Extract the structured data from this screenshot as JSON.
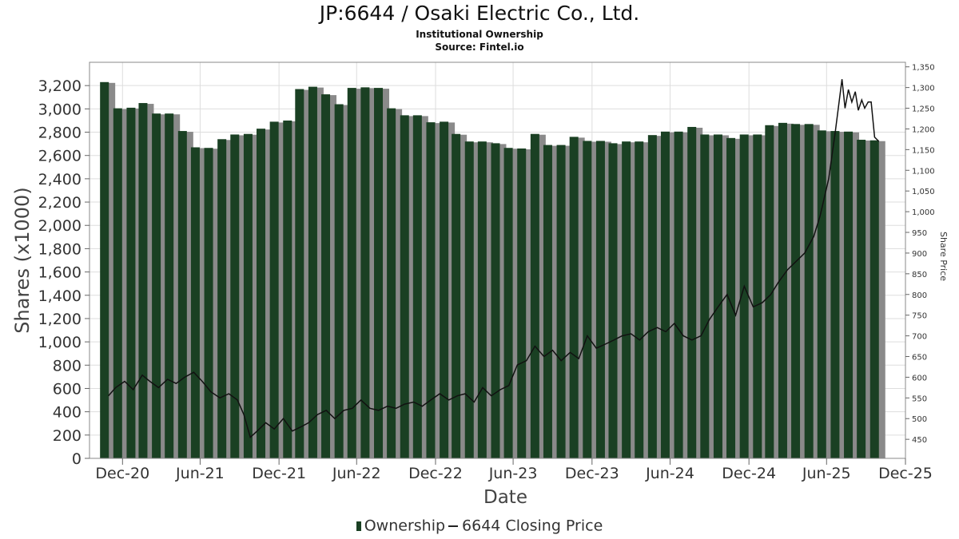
{
  "title": "JP:6644 / Osaki Electric Co., Ltd.",
  "subtitle1": "Institutional Ownership",
  "subtitle2": "Source: Fintel.io",
  "legend": {
    "ownership": "Ownership",
    "price": "6644 Closing Price"
  },
  "colors": {
    "bar": "#1a4023",
    "bar_shadow": "#8a8a8a",
    "price_line": "#111111",
    "grid": "#dddddd"
  },
  "chart_data": {
    "type": "bar",
    "xlabel": "Date",
    "ylabel": "Shares (x1000)",
    "y2label": "Share Price",
    "ylim": [
      0,
      3400
    ],
    "y2lim": [
      404,
      1361
    ],
    "yticks": [
      0,
      200,
      400,
      600,
      800,
      1000,
      1200,
      1400,
      1600,
      1800,
      2000,
      2200,
      2400,
      2600,
      2800,
      3000,
      3200
    ],
    "y2ticks": [
      450,
      500,
      550,
      600,
      650,
      700,
      750,
      800,
      850,
      900,
      950,
      1000,
      1050,
      1100,
      1150,
      1200,
      1250,
      1300,
      1350
    ],
    "xlim": [
      "2020-10-15",
      "2025-12-31"
    ],
    "xticks": [
      {
        "label": "Dec-20",
        "date": "2020-12-31"
      },
      {
        "label": "Jun-21",
        "date": "2021-06-30"
      },
      {
        "label": "Dec-21",
        "date": "2021-12-31"
      },
      {
        "label": "Jun-22",
        "date": "2022-06-30"
      },
      {
        "label": "Dec-22",
        "date": "2022-12-31"
      },
      {
        "label": "Jun-23",
        "date": "2023-06-30"
      },
      {
        "label": "Dec-23",
        "date": "2023-12-31"
      },
      {
        "label": "Jun-24",
        "date": "2024-06-30"
      },
      {
        "label": "Dec-24",
        "date": "2024-12-31"
      },
      {
        "label": "Jun-25",
        "date": "2025-06-30"
      },
      {
        "label": "Dec-25",
        "date": "2025-12-31"
      }
    ],
    "series": [
      {
        "name": "Ownership",
        "type": "bar",
        "dates": [
          "2020-11-30",
          "2020-12-31",
          "2021-01-31",
          "2021-02-28",
          "2021-03-31",
          "2021-04-30",
          "2021-05-31",
          "2021-06-30",
          "2021-07-31",
          "2021-08-31",
          "2021-09-30",
          "2021-10-31",
          "2021-11-30",
          "2021-12-31",
          "2022-01-31",
          "2022-02-28",
          "2022-03-31",
          "2022-04-30",
          "2022-05-31",
          "2022-06-30",
          "2022-07-31",
          "2022-08-31",
          "2022-09-30",
          "2022-10-31",
          "2022-11-30",
          "2022-12-31",
          "2023-01-31",
          "2023-02-28",
          "2023-03-31",
          "2023-04-30",
          "2023-05-31",
          "2023-06-30",
          "2023-07-31",
          "2023-08-31",
          "2023-09-30",
          "2023-10-31",
          "2023-11-30",
          "2023-12-31",
          "2024-01-31",
          "2024-02-29",
          "2024-03-31",
          "2024-04-30",
          "2024-05-31",
          "2024-06-30",
          "2024-07-31",
          "2024-08-31",
          "2024-09-30",
          "2024-10-31",
          "2024-11-30",
          "2024-12-31",
          "2025-01-31",
          "2025-02-28",
          "2025-03-31",
          "2025-04-30",
          "2025-05-31",
          "2025-06-30",
          "2025-07-31",
          "2025-08-31",
          "2025-09-30",
          "2025-10-31"
        ],
        "values": [
          3230,
          3005,
          3010,
          3050,
          2960,
          2960,
          2810,
          2670,
          2665,
          2740,
          2780,
          2785,
          2830,
          2890,
          2900,
          3170,
          3190,
          3125,
          3040,
          3180,
          3185,
          3180,
          3005,
          2945,
          2945,
          2885,
          2890,
          2785,
          2720,
          2720,
          2705,
          2665,
          2660,
          2785,
          2690,
          2690,
          2760,
          2725,
          2725,
          2705,
          2720,
          2720,
          2775,
          2805,
          2805,
          2845,
          2780,
          2780,
          2750,
          2780,
          2780,
          2860,
          2880,
          2870,
          2870,
          2815,
          2810,
          2805,
          2735,
          2730
        ]
      },
      {
        "name": "6644 Closing Price",
        "type": "line",
        "points": [
          [
            "2020-11-28",
            555
          ],
          [
            "2020-12-15",
            575
          ],
          [
            "2021-01-05",
            590
          ],
          [
            "2021-01-25",
            570
          ],
          [
            "2021-02-15",
            605
          ],
          [
            "2021-03-05",
            590
          ],
          [
            "2021-03-25",
            575
          ],
          [
            "2021-04-15",
            595
          ],
          [
            "2021-05-05",
            585
          ],
          [
            "2021-05-25",
            600
          ],
          [
            "2021-06-15",
            612
          ],
          [
            "2021-07-05",
            590
          ],
          [
            "2021-07-25",
            565
          ],
          [
            "2021-08-15",
            550
          ],
          [
            "2021-09-05",
            560
          ],
          [
            "2021-09-25",
            545
          ],
          [
            "2021-10-10",
            510
          ],
          [
            "2021-10-25",
            455
          ],
          [
            "2021-11-10",
            470
          ],
          [
            "2021-11-30",
            490
          ],
          [
            "2021-12-20",
            475
          ],
          [
            "2022-01-10",
            500
          ],
          [
            "2022-01-31",
            470
          ],
          [
            "2022-02-20",
            480
          ],
          [
            "2022-03-10",
            490
          ],
          [
            "2022-03-31",
            510
          ],
          [
            "2022-04-20",
            520
          ],
          [
            "2022-05-10",
            500
          ],
          [
            "2022-05-31",
            520
          ],
          [
            "2022-06-20",
            525
          ],
          [
            "2022-07-10",
            545
          ],
          [
            "2022-07-31",
            525
          ],
          [
            "2022-08-20",
            520
          ],
          [
            "2022-09-10",
            530
          ],
          [
            "2022-09-30",
            525
          ],
          [
            "2022-10-20",
            535
          ],
          [
            "2022-11-10",
            540
          ],
          [
            "2022-11-30",
            530
          ],
          [
            "2022-12-20",
            545
          ],
          [
            "2023-01-10",
            560
          ],
          [
            "2023-01-31",
            545
          ],
          [
            "2023-02-20",
            555
          ],
          [
            "2023-03-10",
            560
          ],
          [
            "2023-03-31",
            540
          ],
          [
            "2023-04-20",
            575
          ],
          [
            "2023-05-10",
            555
          ],
          [
            "2023-05-31",
            570
          ],
          [
            "2023-06-20",
            580
          ],
          [
            "2023-07-10",
            630
          ],
          [
            "2023-07-31",
            640
          ],
          [
            "2023-08-20",
            675
          ],
          [
            "2023-09-10",
            650
          ],
          [
            "2023-09-30",
            665
          ],
          [
            "2023-10-20",
            640
          ],
          [
            "2023-11-10",
            660
          ],
          [
            "2023-11-30",
            645
          ],
          [
            "2023-12-20",
            700
          ],
          [
            "2024-01-10",
            670
          ],
          [
            "2024-01-31",
            680
          ],
          [
            "2024-02-20",
            690
          ],
          [
            "2024-03-10",
            700
          ],
          [
            "2024-03-31",
            705
          ],
          [
            "2024-04-20",
            690
          ],
          [
            "2024-05-10",
            710
          ],
          [
            "2024-05-31",
            720
          ],
          [
            "2024-06-20",
            710
          ],
          [
            "2024-07-10",
            730
          ],
          [
            "2024-07-31",
            700
          ],
          [
            "2024-08-20",
            690
          ],
          [
            "2024-09-10",
            700
          ],
          [
            "2024-09-30",
            740
          ],
          [
            "2024-10-20",
            770
          ],
          [
            "2024-11-10",
            800
          ],
          [
            "2024-11-30",
            750
          ],
          [
            "2024-12-20",
            820
          ],
          [
            "2025-01-10",
            770
          ],
          [
            "2025-01-31",
            780
          ],
          [
            "2025-02-20",
            800
          ],
          [
            "2025-03-10",
            830
          ],
          [
            "2025-03-31",
            860
          ],
          [
            "2025-04-20",
            880
          ],
          [
            "2025-05-10",
            900
          ],
          [
            "2025-05-31",
            940
          ],
          [
            "2025-06-15",
            990
          ],
          [
            "2025-07-05",
            1080
          ],
          [
            "2025-07-20",
            1190
          ],
          [
            "2025-08-05",
            1320
          ],
          [
            "2025-08-12",
            1250
          ],
          [
            "2025-08-20",
            1295
          ],
          [
            "2025-08-28",
            1265
          ],
          [
            "2025-09-05",
            1290
          ],
          [
            "2025-09-12",
            1245
          ],
          [
            "2025-09-20",
            1270
          ],
          [
            "2025-09-27",
            1250
          ],
          [
            "2025-10-05",
            1265
          ],
          [
            "2025-10-12",
            1265
          ],
          [
            "2025-10-20",
            1180
          ],
          [
            "2025-10-30",
            1170
          ]
        ]
      }
    ]
  }
}
